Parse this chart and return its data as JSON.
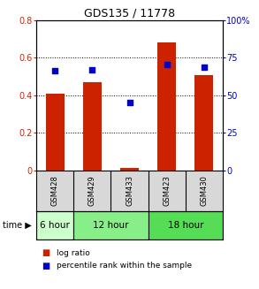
{
  "title": "GDS135 / 11778",
  "samples": [
    "GSM428",
    "GSM429",
    "GSM433",
    "GSM423",
    "GSM430"
  ],
  "log_ratio": [
    0.41,
    0.47,
    0.012,
    0.68,
    0.51
  ],
  "percentile_rank": [
    66.5,
    67.0,
    45.5,
    70.5,
    68.5
  ],
  "ylim_left": [
    0,
    0.8
  ],
  "ylim_right": [
    0,
    100
  ],
  "yticks_left": [
    0,
    0.2,
    0.4,
    0.6,
    0.8
  ],
  "ytick_labels_left": [
    "0",
    "0.2",
    "0.4",
    "0.6",
    "0.8"
  ],
  "yticks_right": [
    0,
    25,
    50,
    75,
    100
  ],
  "ytick_labels_right": [
    "0",
    "25",
    "50",
    "75",
    "100%"
  ],
  "bar_color": "#cc2200",
  "dot_color": "#0000cc",
  "time_groups": [
    {
      "label": "6 hour",
      "samples": [
        "GSM428"
      ],
      "color": "#ccffcc"
    },
    {
      "label": "12 hour",
      "samples": [
        "GSM429",
        "GSM433"
      ],
      "color": "#88ee88"
    },
    {
      "label": "18 hour",
      "samples": [
        "GSM423",
        "GSM430"
      ],
      "color": "#55dd55"
    }
  ],
  "sample_bg_color": "#d8d8d8",
  "plot_bg": "#ffffff",
  "legend_bar_label": "log ratio",
  "legend_dot_label": "percentile rank within the sample",
  "bar_width": 0.5
}
